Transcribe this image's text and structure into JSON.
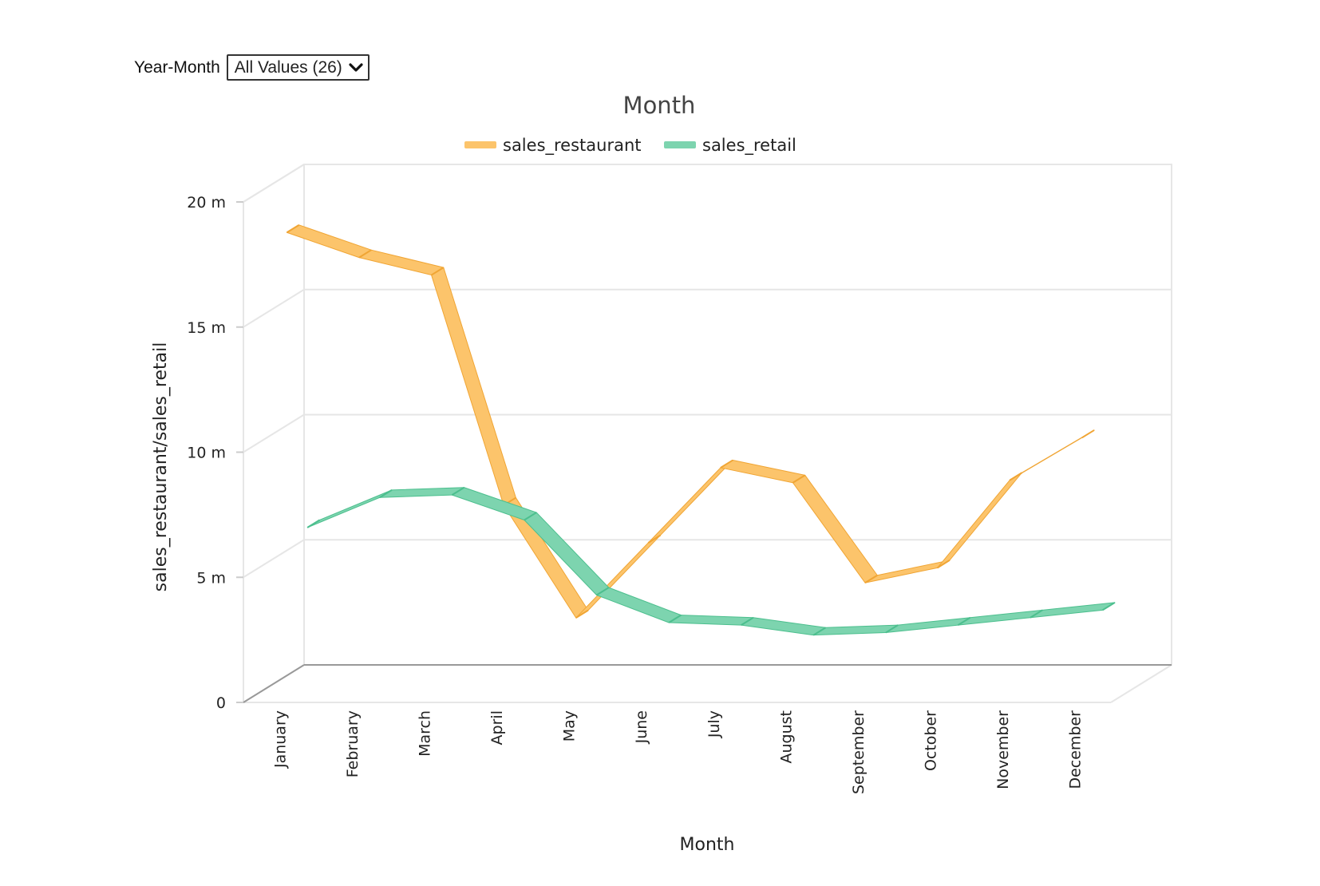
{
  "filter": {
    "label": "Year-Month",
    "selected": "All Values (26)"
  },
  "colors": {
    "restaurant": "#FCC46B",
    "restaurant_dark": "#F0A534",
    "retail": "#7DD4AF",
    "retail_dark": "#4CBF8E",
    "grid": "#E6E6E6"
  },
  "chart_data": {
    "type": "line",
    "title": "Month",
    "xlabel": "Month",
    "ylabel": "sales_restaurant/sales_retail",
    "categories": [
      "January",
      "February",
      "March",
      "April",
      "May",
      "June",
      "July",
      "August",
      "September",
      "October",
      "November",
      "December"
    ],
    "series": [
      {
        "name": "sales_restaurant",
        "values": [
          18.6,
          17.6,
          16.9,
          7.7,
          3.2,
          6.2,
          9.2,
          8.6,
          4.6,
          5.2,
          8.7,
          10.4
        ]
      },
      {
        "name": "sales_retail",
        "values": [
          6.3,
          7.5,
          7.6,
          6.6,
          3.6,
          2.5,
          2.4,
          2.0,
          2.1,
          2.4,
          2.7,
          3.0
        ]
      }
    ],
    "ylim": [
      0,
      20
    ],
    "yticks": [
      "0",
      "5 m",
      "10 m",
      "15 m",
      "20 m"
    ],
    "grid": true,
    "legend": "top-center",
    "style": "3d-ribbon"
  }
}
